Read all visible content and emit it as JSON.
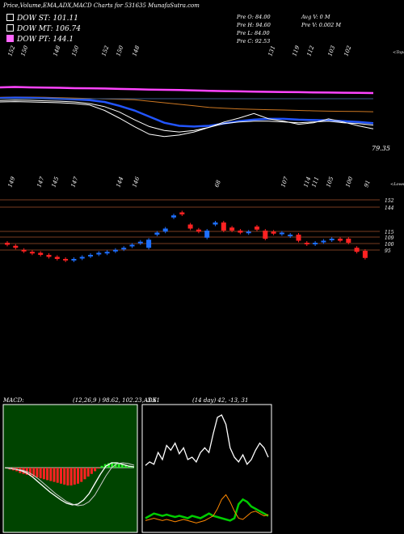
{
  "title": "Price,Volume,EMA,ADX,MACD Charts for 531635 MunafaSutra.com",
  "legend": [
    {
      "label": "DOW ST: 101.11",
      "color": "#000000"
    },
    {
      "label": "DOW MT: 106.74",
      "color": "#000000"
    },
    {
      "label": "DOW PT: 144.1",
      "color": "#ff66ff"
    }
  ],
  "ohlc": {
    "open": "Pre  O: 84.00",
    "high": "Pre  H: 94.60",
    "low": "Pre  L: 84.00",
    "close": "Pre  C: 92.53",
    "avg_vol": "Avg V: 0  M",
    "pre_vol": "Pre  V: 0.002  M"
  },
  "tops_label": "<Tops",
  "lows_label": "<Lows",
  "last_price_label": "79.35",
  "top_marks": [
    "152",
    "150",
    "148",
    "150",
    "152",
    "150",
    "148",
    "131",
    "119",
    "112",
    "103",
    "102"
  ],
  "low_marks": [
    "149",
    "147",
    "145",
    "147",
    "144",
    "146",
    "68",
    "107",
    "114",
    "111",
    "105",
    "100",
    "91"
  ],
  "levels": [
    "152",
    "144",
    "115",
    "109",
    "100",
    "95"
  ],
  "macd": {
    "label": "MACD:",
    "params": "(12,26,9 ) 98.62,  102.23,  -3.61"
  },
  "adx": {
    "label": "ADX",
    "params": "(14  day) 42,  -13,  31"
  },
  "colors": {
    "ema_long": "#ff44ff",
    "ema_mid": "#cc7722",
    "ema_short": "#2255ff",
    "up": "#1e6fff",
    "down": "#ff2222",
    "macd_bg": "#004400",
    "adx_plus": "#00cc00",
    "adx_minus": "#ff8800"
  },
  "chart_data": {
    "type": "candlestick",
    "series": [
      {
        "name": "candles",
        "values": [
          {
            "o": 100,
            "c": 98,
            "dir": "down"
          },
          {
            "o": 97,
            "c": 95,
            "dir": "down"
          },
          {
            "o": 93,
            "c": 92,
            "dir": "down"
          },
          {
            "o": 91,
            "c": 90,
            "dir": "down"
          },
          {
            "o": 90,
            "c": 88,
            "dir": "down"
          },
          {
            "o": 88,
            "c": 86,
            "dir": "down"
          },
          {
            "o": 86,
            "c": 84,
            "dir": "down"
          },
          {
            "o": 84,
            "c": 83,
            "dir": "down"
          },
          {
            "o": 83,
            "c": 84,
            "dir": "up"
          },
          {
            "o": 85,
            "c": 86,
            "dir": "up"
          },
          {
            "o": 87,
            "c": 88,
            "dir": "up"
          },
          {
            "o": 89,
            "c": 90,
            "dir": "up"
          },
          {
            "o": 90,
            "c": 91,
            "dir": "up"
          },
          {
            "o": 92,
            "c": 93,
            "dir": "up"
          },
          {
            "o": 94,
            "c": 95,
            "dir": "up"
          },
          {
            "o": 97,
            "c": 98,
            "dir": "up"
          },
          {
            "o": 100,
            "c": 101,
            "dir": "up"
          },
          {
            "o": 95,
            "c": 103,
            "dir": "up"
          },
          {
            "o": 108,
            "c": 110,
            "dir": "up"
          },
          {
            "o": 111,
            "c": 114,
            "dir": "up"
          },
          {
            "o": 125,
            "c": 127,
            "dir": "up"
          },
          {
            "o": 130,
            "c": 128,
            "dir": "down"
          },
          {
            "o": 118,
            "c": 114,
            "dir": "down"
          },
          {
            "o": 113,
            "c": 111,
            "dir": "down"
          },
          {
            "o": 105,
            "c": 112,
            "dir": "up"
          },
          {
            "o": 118,
            "c": 120,
            "dir": "up"
          },
          {
            "o": 120,
            "c": 112,
            "dir": "down"
          },
          {
            "o": 115,
            "c": 112,
            "dir": "down"
          },
          {
            "o": 112,
            "c": 110,
            "dir": "down"
          },
          {
            "o": 110,
            "c": 111,
            "dir": "up"
          },
          {
            "o": 116,
            "c": 113,
            "dir": "down"
          },
          {
            "o": 112,
            "c": 104,
            "dir": "down"
          },
          {
            "o": 111,
            "c": 109,
            "dir": "down"
          },
          {
            "o": 109,
            "c": 110,
            "dir": "up"
          },
          {
            "o": 107,
            "c": 108,
            "dir": "up"
          },
          {
            "o": 108,
            "c": 102,
            "dir": "down"
          },
          {
            "o": 100,
            "c": 99,
            "dir": "down"
          },
          {
            "o": 99,
            "c": 100,
            "dir": "up"
          },
          {
            "o": 101,
            "c": 102,
            "dir": "up"
          },
          {
            "o": 103,
            "c": 104,
            "dir": "up"
          },
          {
            "o": 104,
            "c": 102,
            "dir": "down"
          },
          {
            "o": 104,
            "c": 100,
            "dir": "down"
          },
          {
            "o": 95,
            "c": 91,
            "dir": "down"
          },
          {
            "o": 92,
            "c": 85,
            "dir": "down"
          }
        ]
      }
    ],
    "ema_long": [
      146,
      146.5,
      146,
      145.8,
      145.5,
      145,
      144.8,
      144.5,
      144,
      143.6,
      143.2,
      142.8,
      142.5,
      142,
      141.6,
      141.2,
      140.8,
      140.5,
      140.2,
      140,
      139.8,
      139.5,
      139.3,
      139.1,
      138.9,
      138.6
    ],
    "ema_mid": [
      133,
      133.5,
      133.4,
      133,
      132.5,
      132,
      131.5,
      131,
      130.5,
      130,
      128,
      126,
      124,
      122,
      120,
      119,
      118,
      117.5,
      117,
      116.5,
      116,
      115.5,
      115,
      114.8,
      114.6,
      114.3
    ],
    "ema_short": [
      132,
      132.5,
      132.3,
      131.8,
      131.2,
      130.5,
      129.5,
      127,
      122,
      116,
      108,
      100,
      96,
      95,
      96,
      99,
      102,
      104,
      105,
      105,
      104,
      103.5,
      103,
      102,
      101,
      99.5
    ],
    "ema_fast": [
      129,
      129.5,
      129.2,
      128.5,
      128,
      127,
      125,
      121,
      114,
      104,
      95,
      90,
      88,
      90,
      94,
      99,
      101,
      102,
      102,
      101,
      100,
      101,
      102,
      100,
      99,
      97
    ],
    "price_line": [
      127,
      127.5,
      127,
      126.5,
      126,
      125,
      123,
      116,
      106,
      95,
      85,
      82,
      84,
      88,
      94,
      101,
      106,
      112,
      105,
      102,
      98,
      100,
      105,
      101,
      96,
      92
    ],
    "macd_hist": [
      -1,
      -2,
      -3,
      -4,
      -6,
      -7,
      -8,
      -9,
      -10,
      -11,
      -12,
      -13,
      -14,
      -15,
      -16,
      -17,
      -18,
      -19,
      -20,
      -20,
      -19,
      -18,
      -16,
      -13,
      -10,
      -7,
      -4,
      -1,
      2,
      4,
      5,
      6,
      6,
      5,
      4,
      3,
      2,
      1
    ],
    "macd_line": [
      0,
      -1,
      -2,
      -4,
      -7,
      -12,
      -18,
      -24,
      -30,
      -35,
      -40,
      -44,
      -46,
      -45,
      -40,
      -32,
      -20,
      -8,
      2,
      6,
      6,
      4,
      2,
      1
    ],
    "macd_signal": [
      0,
      -1,
      -2,
      -3,
      -5,
      -9,
      -14,
      -20,
      -26,
      -32,
      -37,
      -42,
      -45,
      -47,
      -46,
      -42,
      -34,
      -22,
      -10,
      0,
      5,
      6,
      5,
      3
    ],
    "adx_line": [
      55,
      58,
      56,
      66,
      60,
      72,
      68,
      74,
      65,
      70,
      60,
      62,
      58,
      66,
      70,
      66,
      82,
      96,
      98,
      90,
      70,
      62,
      58,
      64,
      56,
      60,
      68,
      74,
      70,
      62
    ],
    "adx_plus": [
      10,
      12,
      14,
      13,
      12,
      13,
      12,
      11,
      12,
      11,
      10,
      12,
      11,
      10,
      12,
      14,
      12,
      11,
      10,
      9,
      8,
      10,
      22,
      26,
      24,
      20,
      18,
      16,
      14,
      12
    ],
    "adx_minus": [
      8,
      9,
      10,
      9,
      8,
      9,
      8,
      7,
      8,
      9,
      8,
      7,
      6,
      7,
      8,
      10,
      12,
      18,
      26,
      30,
      24,
      16,
      10,
      9,
      12,
      15,
      16,
      14,
      12,
      13
    ]
  }
}
